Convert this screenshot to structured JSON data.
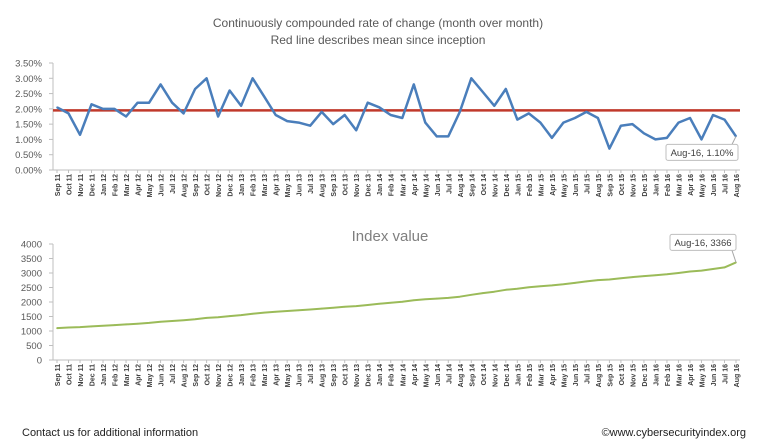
{
  "footer": {
    "contact": "Contact us for additional information",
    "copyright": "©www.cybersecurityindex.org"
  },
  "chart_data": [
    {
      "type": "line",
      "title": "Continuously compounded rate of change (month over month)",
      "subtitle": "Red line describes mean since inception",
      "categories": [
        "Sep 11",
        "Oct 11",
        "Nov 11",
        "Dec 11",
        "Jan 12",
        "Feb 12",
        "Mar 12",
        "Apr 12",
        "May 12",
        "Jun 12",
        "Jul 12",
        "Aug 12",
        "Sep 12",
        "Oct 12",
        "Nov 12",
        "Dec 12",
        "Jan 13",
        "Feb 13",
        "Mar 13",
        "Apr 13",
        "May 13",
        "Jun 13",
        "Jul 13",
        "Aug 13",
        "Sep 13",
        "Oct 13",
        "Nov 13",
        "Dec 13",
        "Jan 14",
        "Feb 14",
        "Mar 14",
        "Apr 14",
        "May 14",
        "Jun 14",
        "Jul 14",
        "Aug 14",
        "Sep 14",
        "Oct 14",
        "Nov 14",
        "Dec 14",
        "Jan 15",
        "Feb 15",
        "Mar 15",
        "Apr 15",
        "May 15",
        "Jun 15",
        "Jul 15",
        "Aug 15",
        "Sep 15",
        "Oct 15",
        "Nov 15",
        "Dec 15",
        "Jan 16",
        "Feb 16",
        "Mar 16",
        "Apr 16",
        "May 16",
        "Jun 16",
        "Jul 16",
        "Aug 16"
      ],
      "values": [
        2.05,
        1.85,
        1.15,
        2.15,
        2.0,
        2.0,
        1.75,
        2.2,
        2.2,
        2.8,
        2.2,
        1.85,
        2.65,
        3.0,
        1.75,
        2.6,
        2.1,
        3.0,
        2.4,
        1.8,
        1.6,
        1.55,
        1.45,
        1.9,
        1.5,
        1.8,
        1.3,
        2.2,
        2.05,
        1.8,
        1.7,
        2.8,
        1.55,
        1.1,
        1.1,
        1.9,
        3.0,
        2.55,
        2.1,
        2.65,
        1.65,
        1.85,
        1.55,
        1.05,
        1.55,
        1.7,
        1.9,
        1.7,
        0.7,
        1.45,
        1.5,
        1.2,
        1.0,
        1.05,
        1.55,
        1.7,
        1.0,
        1.8,
        1.65,
        1.1
      ],
      "mean": 1.95,
      "ylim": [
        0,
        3.5
      ],
      "yticks": [
        "0.00%",
        "0.50%",
        "1.00%",
        "1.50%",
        "2.00%",
        "2.50%",
        "3.00%",
        "3.50%"
      ],
      "line_color": "#4a7ebb",
      "mean_color": "#c0392b",
      "annotation": "Aug-16, 1.10%",
      "grid": false
    },
    {
      "type": "line",
      "title": "Index value",
      "categories": [
        "Sep 11",
        "Oct 11",
        "Nov 11",
        "Dec 11",
        "Jan 12",
        "Feb 12",
        "Mar 12",
        "Apr 12",
        "May 12",
        "Jun 12",
        "Jul 12",
        "Aug 12",
        "Sep 12",
        "Oct 12",
        "Nov 12",
        "Dec 12",
        "Jan 13",
        "Feb 13",
        "Mar 13",
        "Apr 13",
        "May 13",
        "Jun 13",
        "Jul 13",
        "Aug 13",
        "Sep 13",
        "Oct 13",
        "Nov 13",
        "Dec 13",
        "Jan 14",
        "Feb 14",
        "Mar 14",
        "Apr 14",
        "May 14",
        "Jun 14",
        "Jul 14",
        "Aug 14",
        "Sep 14",
        "Oct 14",
        "Nov 14",
        "Dec 14",
        "Jan 15",
        "Feb 15",
        "Mar 15",
        "Apr 15",
        "May 15",
        "Jun 15",
        "Jul 15",
        "Aug 15",
        "Sep 15",
        "Oct 15",
        "Nov 15",
        "Dec 15",
        "Jan 16",
        "Feb 16",
        "Mar 16",
        "Apr 16",
        "May 16",
        "Jun 16",
        "Jul 16",
        "Aug 16"
      ],
      "values": [
        1100,
        1120,
        1133,
        1158,
        1181,
        1205,
        1226,
        1253,
        1281,
        1318,
        1346,
        1371,
        1408,
        1451,
        1476,
        1514,
        1547,
        1594,
        1633,
        1662,
        1689,
        1715,
        1740,
        1774,
        1801,
        1833,
        1857,
        1898,
        1937,
        1972,
        2006,
        2063,
        2095,
        2118,
        2142,
        2183,
        2249,
        2307,
        2356,
        2420,
        2460,
        2506,
        2545,
        2572,
        2612,
        2657,
        2710,
        2756,
        2776,
        2816,
        2859,
        2894,
        2923,
        2954,
        3000,
        3052,
        3082,
        3138,
        3193,
        3366
      ],
      "ylim": [
        0,
        4000
      ],
      "yticks": [
        "0",
        "500",
        "1000",
        "1500",
        "2000",
        "2500",
        "3000",
        "3500",
        "4000"
      ],
      "line_color": "#9bbb59",
      "annotation": "Aug-16, 3366",
      "grid": false
    }
  ]
}
